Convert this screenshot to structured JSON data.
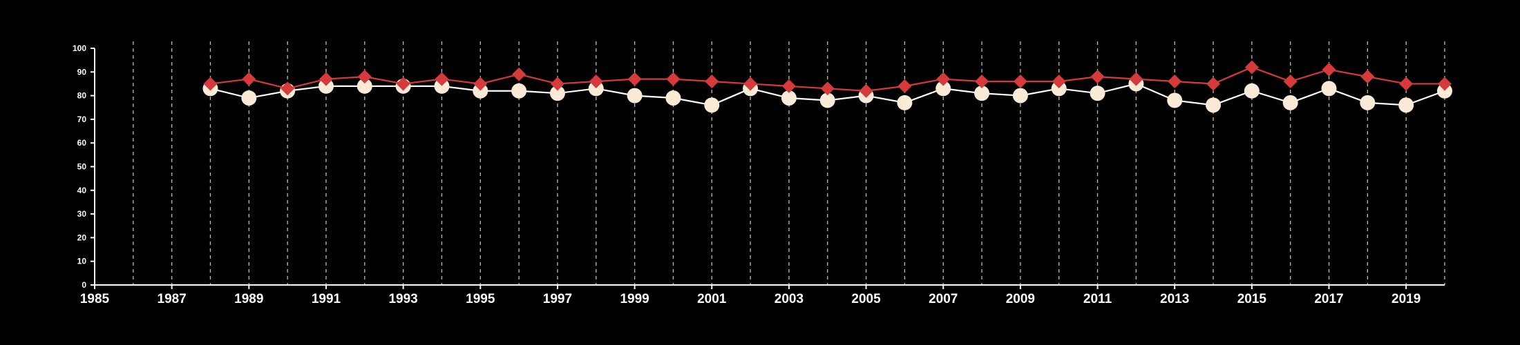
{
  "chart_data": {
    "type": "line",
    "title": "",
    "xlabel": "",
    "ylabel": "",
    "xlim": [
      1985,
      2020
    ],
    "ylim": [
      0,
      100
    ],
    "x_ticks": [
      1985,
      1987,
      1989,
      1991,
      1993,
      1995,
      1997,
      1999,
      2001,
      2003,
      2005,
      2007,
      2009,
      2011,
      2013,
      2015,
      2017,
      2019
    ],
    "y_ticks": [
      0,
      10,
      20,
      30,
      40,
      50,
      60,
      70,
      80,
      90,
      100
    ],
    "x_tick_labels": [
      "1985",
      "1987",
      "1989",
      "1991",
      "1993",
      "1995",
      "1997",
      "1999",
      "2001",
      "2003",
      "2005",
      "2007",
      "2009",
      "2011",
      "2013",
      "2015",
      "2017",
      "2019"
    ],
    "y_tick_labels": [
      "0",
      "10",
      "20",
      "30",
      "40",
      "50",
      "60",
      "70",
      "80",
      "90",
      "100"
    ],
    "vertical_gridlines": [
      1986,
      1987,
      1988,
      1989,
      1990,
      1991,
      1992,
      1993,
      1994,
      1995,
      1996,
      1997,
      1998,
      1999,
      2000,
      2001,
      2002,
      2003,
      2004,
      2005,
      2006,
      2007,
      2008,
      2009,
      2010,
      2011,
      2012,
      2013,
      2014,
      2015,
      2016,
      2017,
      2018,
      2019,
      2020
    ],
    "x": [
      1988,
      1989,
      1990,
      1991,
      1992,
      1993,
      1994,
      1995,
      1996,
      1997,
      1998,
      1999,
      2000,
      2001,
      2002,
      2003,
      2004,
      2005,
      2006,
      2007,
      2008,
      2009,
      2010,
      2011,
      2012,
      2013,
      2014,
      2015,
      2016,
      2017,
      2018,
      2019,
      2020
    ],
    "series": [
      {
        "marker": "diamond",
        "color": "#d63a3a",
        "values": [
          85,
          87,
          83,
          87,
          88,
          85,
          87,
          85,
          89,
          85,
          86,
          87,
          87,
          86,
          85,
          84,
          83,
          82,
          84,
          87,
          86,
          86,
          86,
          88,
          87,
          86,
          85,
          92,
          86,
          91,
          88,
          85,
          85
        ]
      },
      {
        "marker": "circle",
        "color": "#fbebd6",
        "values": [
          83,
          79,
          82,
          84,
          84,
          84,
          84,
          82,
          82,
          81,
          83,
          80,
          79,
          76,
          83,
          79,
          78,
          80,
          77,
          83,
          81,
          80,
          83,
          81,
          85,
          78,
          76,
          82,
          77,
          83,
          77,
          76,
          82
        ]
      }
    ],
    "grid": "vertical-dashed",
    "legend": "none",
    "colors": {
      "background": "#000000",
      "axis": "#ffffff",
      "grid": "#bdbdbd",
      "circle_line": "#ffffff"
    }
  }
}
